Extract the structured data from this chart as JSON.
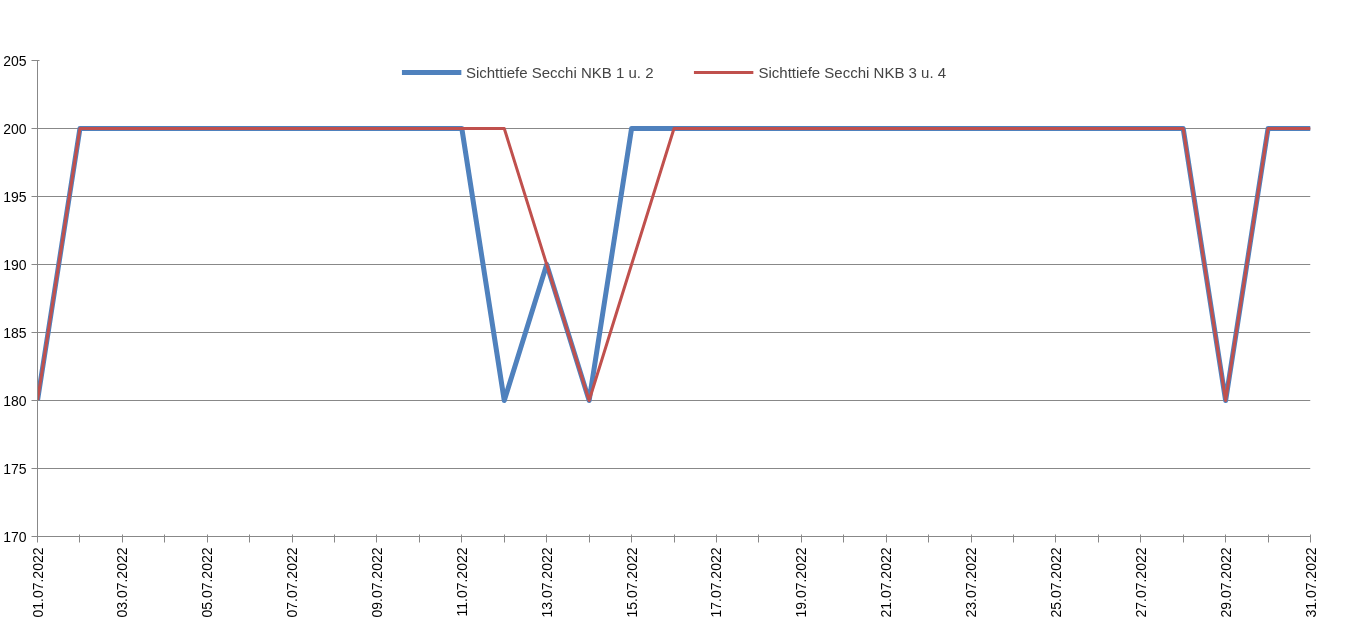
{
  "chart_data": {
    "type": "line",
    "categories": [
      "01.07.2022",
      null,
      "03.07.2022",
      null,
      "05.07.2022",
      null,
      "07.07.2022",
      null,
      "09.07.2022",
      null,
      "11.07.2022",
      null,
      "13.07.2022",
      null,
      "15.07.2022",
      null,
      "17.07.2022",
      null,
      "19.07.2022",
      null,
      "21.07.2022",
      null,
      "23.07.2022",
      null,
      "25.07.2022",
      null,
      "27.07.2022",
      null,
      "29.07.2022",
      null,
      "31.07.2022"
    ],
    "series": [
      {
        "name": "Sichttiefe Secchi NKB 1 u. 2",
        "color": "#4f81bd",
        "values": [
          180,
          200,
          200,
          200,
          200,
          200,
          200,
          200,
          200,
          200,
          200,
          180,
          190,
          180,
          200,
          200,
          200,
          200,
          200,
          200,
          200,
          200,
          200,
          200,
          200,
          200,
          200,
          200,
          180,
          200,
          200
        ]
      },
      {
        "name": "Sichttiefe Secchi NKB 3 u. 4",
        "color": "#c0504d",
        "values": [
          180,
          200,
          200,
          200,
          200,
          200,
          200,
          200,
          200,
          200,
          200,
          200,
          190,
          180,
          190,
          200,
          200,
          200,
          200,
          200,
          200,
          200,
          200,
          200,
          200,
          200,
          200,
          200,
          180,
          200,
          200
        ]
      }
    ],
    "ylim": [
      170,
      205
    ],
    "yticks": [
      170,
      175,
      180,
      185,
      190,
      195,
      200,
      205
    ],
    "grid": "y",
    "legend": "top",
    "marker": "none",
    "line_style": "solid"
  }
}
